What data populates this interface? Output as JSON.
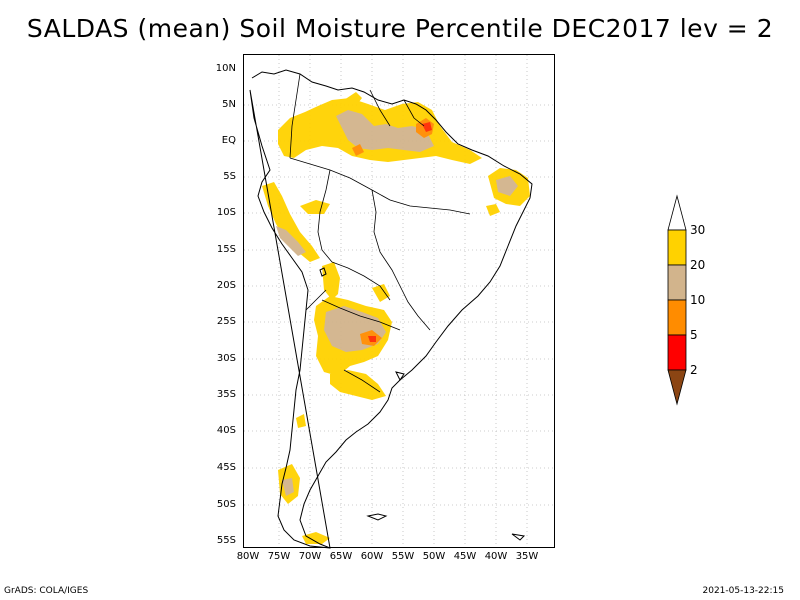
{
  "title": "SALDAS (mean) Soil Moisture Percentile DEC2017 lev = 2",
  "map": {
    "latitude_labels": [
      "10N",
      "5N",
      "EQ",
      "5S",
      "10S",
      "15S",
      "20S",
      "25S",
      "30S",
      "35S",
      "40S",
      "45S",
      "50S",
      "55S"
    ],
    "longitude_labels": [
      "80W",
      "75W",
      "70W",
      "65W",
      "60W",
      "55W",
      "50W",
      "45W",
      "40W",
      "35W"
    ]
  },
  "legend": {
    "labels": [
      "30",
      "20",
      "10",
      "5",
      "2"
    ],
    "colors": {
      "above_30": "#ffffff",
      "band_20_30": "#ffd200",
      "band_10_20": "#d2b48c",
      "band_5_10": "#ff8c00",
      "band_2_5": "#ff0000",
      "below_2": "#8b4513"
    }
  },
  "footer": {
    "left": "GrADS: COLA/IGES",
    "right": "2021-05-13-22:15"
  }
}
